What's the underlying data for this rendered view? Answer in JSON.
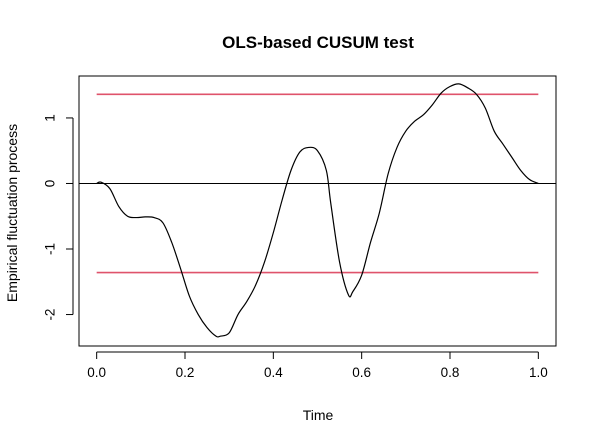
{
  "chart_data": {
    "type": "line",
    "title": "OLS-based CUSUM test",
    "xlabel": "Time",
    "ylabel": "Empirical fluctuation process",
    "xlim": [
      -0.04,
      1.04
    ],
    "ylim": [
      -2.48,
      1.64
    ],
    "grid": false,
    "legend": "none",
    "x_ticks": [
      0.0,
      0.2,
      0.4,
      0.6,
      0.8,
      1.0
    ],
    "x_tick_labels": [
      "0.0",
      "0.2",
      "0.4",
      "0.6",
      "0.8",
      "1.0"
    ],
    "y_ticks": [
      -2,
      -1,
      0,
      1
    ],
    "y_tick_labels": [
      "-2",
      "-1",
      "0",
      "1"
    ],
    "boundaries": {
      "upper": 1.36,
      "lower": -1.36,
      "color": "#df536b"
    },
    "reference_line": {
      "y": 0,
      "color": "#000000"
    },
    "series": [
      {
        "color": "#000000",
        "x": [
          0.0,
          0.01,
          0.03,
          0.05,
          0.07,
          0.09,
          0.11,
          0.13,
          0.15,
          0.17,
          0.19,
          0.21,
          0.23,
          0.25,
          0.27,
          0.28,
          0.3,
          0.32,
          0.34,
          0.36,
          0.38,
          0.4,
          0.42,
          0.44,
          0.46,
          0.48,
          0.5,
          0.52,
          0.53,
          0.55,
          0.57,
          0.58,
          0.6,
          0.62,
          0.64,
          0.66,
          0.68,
          0.7,
          0.72,
          0.74,
          0.76,
          0.78,
          0.8,
          0.82,
          0.84,
          0.86,
          0.88,
          0.9,
          0.92,
          0.94,
          0.96,
          0.98,
          1.0
        ],
        "y": [
          0.0,
          0.02,
          -0.08,
          -0.35,
          -0.5,
          -0.52,
          -0.51,
          -0.52,
          -0.6,
          -0.9,
          -1.3,
          -1.72,
          -2.0,
          -2.2,
          -2.33,
          -2.33,
          -2.28,
          -2.0,
          -1.8,
          -1.55,
          -1.2,
          -0.75,
          -0.25,
          0.2,
          0.48,
          0.55,
          0.5,
          0.2,
          -0.3,
          -1.2,
          -1.7,
          -1.65,
          -1.4,
          -0.9,
          -0.45,
          0.15,
          0.55,
          0.8,
          0.95,
          1.05,
          1.2,
          1.38,
          1.48,
          1.52,
          1.46,
          1.36,
          1.15,
          0.8,
          0.6,
          0.4,
          0.2,
          0.06,
          0.0
        ]
      }
    ]
  }
}
